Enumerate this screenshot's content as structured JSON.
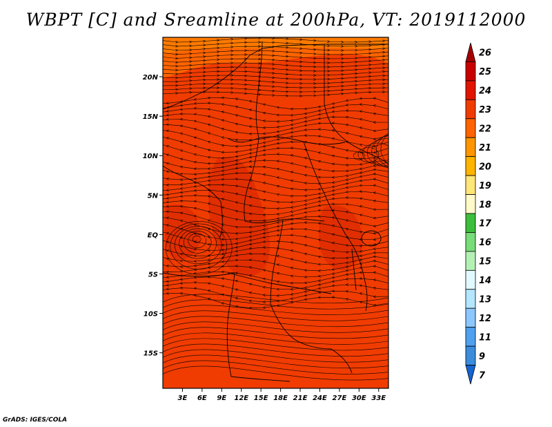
{
  "title": "WBPT [C] and Sreamline at 200hPa, VT: 2019112000",
  "credit": "GrADS: IGES/COLA",
  "map": {
    "lon_ticks": [
      "3E",
      "6E",
      "9E",
      "12E",
      "15E",
      "18E",
      "21E",
      "24E",
      "27E",
      "30E",
      "33E"
    ],
    "lat_ticks": [
      "20N",
      "15N",
      "10N",
      "5N",
      "EQ",
      "5S",
      "10S",
      "15S"
    ],
    "lon_range": [
      0,
      34.5
    ],
    "lat_range": [
      -19.5,
      25
    ],
    "field_color_main": "#f03c00",
    "field_color_warm": "#e12e00",
    "field_color_north": "#ff6400",
    "streamline_color": "#000000",
    "boundary_color": "#000000"
  },
  "colorbar": {
    "levels": [
      "26",
      "25",
      "24",
      "23",
      "22",
      "21",
      "20",
      "19",
      "18",
      "17",
      "16",
      "15",
      "14",
      "13",
      "12",
      "11",
      "9",
      "7"
    ],
    "colors": [
      "#a50000",
      "#c80000",
      "#e11400",
      "#f03c00",
      "#ff6400",
      "#ff9600",
      "#ffb400",
      "#ffe678",
      "#fffac8",
      "#3cbe3c",
      "#78dc78",
      "#b4f0b4",
      "#e1faff",
      "#b4e6ff",
      "#8cc8ff",
      "#50a0f0",
      "#3c8cdc",
      "#1464d2"
    ]
  }
}
